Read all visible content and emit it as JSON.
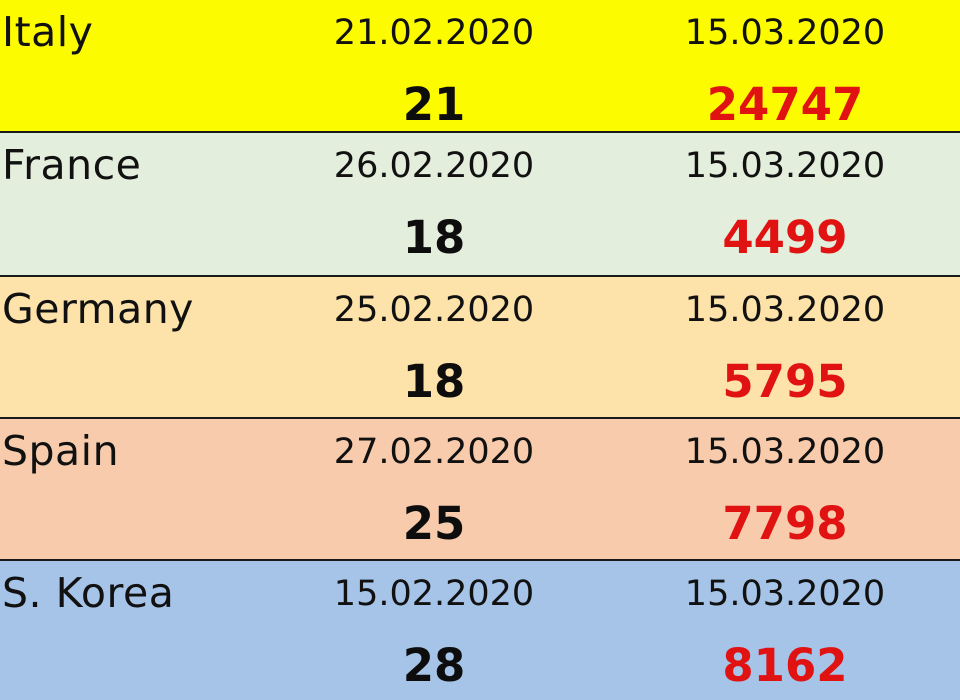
{
  "rows": [
    {
      "country": "Italy",
      "first_date": "21.02.2020",
      "first_cases": "21",
      "second_date": "15.03.2020",
      "second_cases": "24747",
      "background": "#fdfb00"
    },
    {
      "country": "France",
      "first_date": "26.02.2020",
      "first_cases": "18",
      "second_date": "15.03.2020",
      "second_cases": "4499",
      "background": "#e4eedd"
    },
    {
      "country": "Germany",
      "first_date": "25.02.2020",
      "first_cases": "18",
      "second_date": "15.03.2020",
      "second_cases": "5795",
      "background": "#fde3a9"
    },
    {
      "country": "Spain",
      "first_date": "27.02.2020",
      "first_cases": "25",
      "second_date": "15.03.2020",
      "second_cases": "7798",
      "background": "#f8cbad"
    },
    {
      "country": "S. Korea",
      "first_date": "15.02.2020",
      "first_cases": "28",
      "second_date": "15.03.2020",
      "second_cases": "8162",
      "background": "#a5c4e8"
    }
  ],
  "colors": {
    "highlight_number": "#e01212",
    "border": "#1a1a1a"
  }
}
